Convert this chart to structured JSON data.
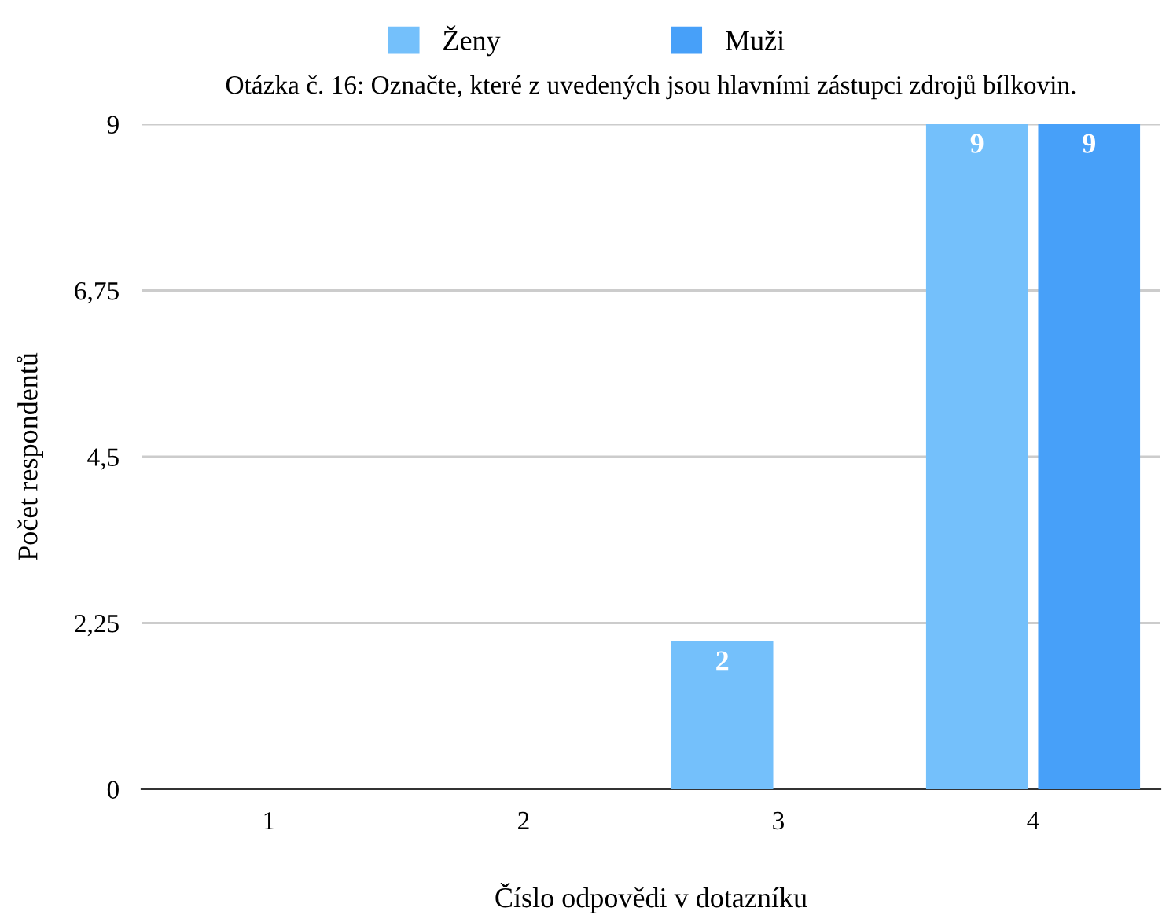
{
  "chart_data": {
    "type": "bar",
    "title": "Otázka č. 16: Označte, které z uvedených jsou hlavními zástupci zdrojů bílkovin.",
    "xlabel": "Číslo odpovědi v dotazníku",
    "ylabel": "Počet respondentů",
    "categories": [
      "1",
      "2",
      "3",
      "4"
    ],
    "series": [
      {
        "name": "Ženy",
        "color": "#74c0fb",
        "values": [
          0,
          0,
          2,
          9
        ],
        "value_labels": [
          null,
          null,
          "2",
          "9"
        ]
      },
      {
        "name": "Muži",
        "color": "#47a0f9",
        "values": [
          0,
          0,
          0,
          9
        ],
        "value_labels": [
          null,
          null,
          null,
          "9"
        ]
      }
    ],
    "ylim": [
      0,
      9
    ],
    "yticks": [
      0,
      {
        "value": 2.25,
        "label": "2,25"
      },
      {
        "value": 4.5,
        "label": "4,5"
      },
      {
        "value": 6.75,
        "label": "6,75"
      },
      9
    ],
    "grid": "y",
    "legend": "top"
  }
}
